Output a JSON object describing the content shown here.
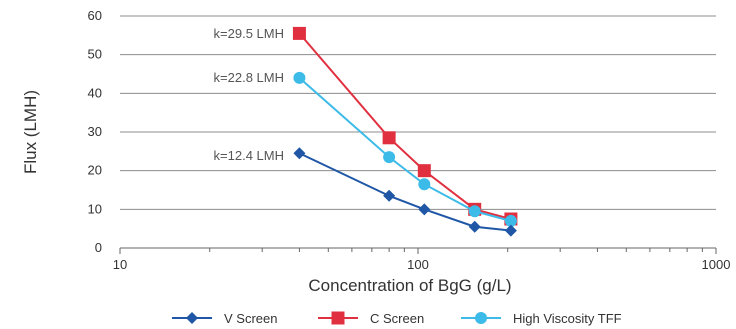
{
  "chart_data": {
    "type": "line",
    "xscale": "log",
    "xlim": [
      10,
      1000
    ],
    "ylim": [
      0,
      60
    ],
    "xticks": [
      10,
      100,
      1000
    ],
    "xtick_labels": [
      "10",
      "100",
      "1000"
    ],
    "yticks": [
      0,
      10,
      20,
      30,
      40,
      50,
      60
    ],
    "ytick_labels": [
      "0",
      "10",
      "20",
      "30",
      "40",
      "50",
      "60"
    ],
    "xlabel": "Concentration of BgG (g/L)",
    "ylabel": "Flux (LMH)",
    "grid": "horizontal",
    "legend_position": "bottom",
    "series": [
      {
        "name": "V Screen",
        "color": "#1f57a6",
        "marker": "diamond",
        "x": [
          40,
          80,
          105,
          155,
          205
        ],
        "y": [
          24.5,
          13.5,
          10,
          5.5,
          4.5
        ]
      },
      {
        "name": "C Screen",
        "color": "#e03040",
        "marker": "square",
        "x": [
          40,
          80,
          105,
          155,
          205
        ],
        "y": [
          55.5,
          28.5,
          20,
          10,
          7.5
        ]
      },
      {
        "name": "High Viscosity TFF",
        "color": "#3dbbe8",
        "marker": "circle",
        "x": [
          40,
          80,
          105,
          155,
          205
        ],
        "y": [
          44,
          23.5,
          16.5,
          9.5,
          7
        ]
      }
    ],
    "annotations": [
      {
        "text": "k=29.5 LMH",
        "series": "C Screen"
      },
      {
        "text": "k=22.8 LMH",
        "series": "High Viscosity TFF"
      },
      {
        "text": "k=12.4 LMH",
        "series": "V Screen"
      }
    ]
  }
}
